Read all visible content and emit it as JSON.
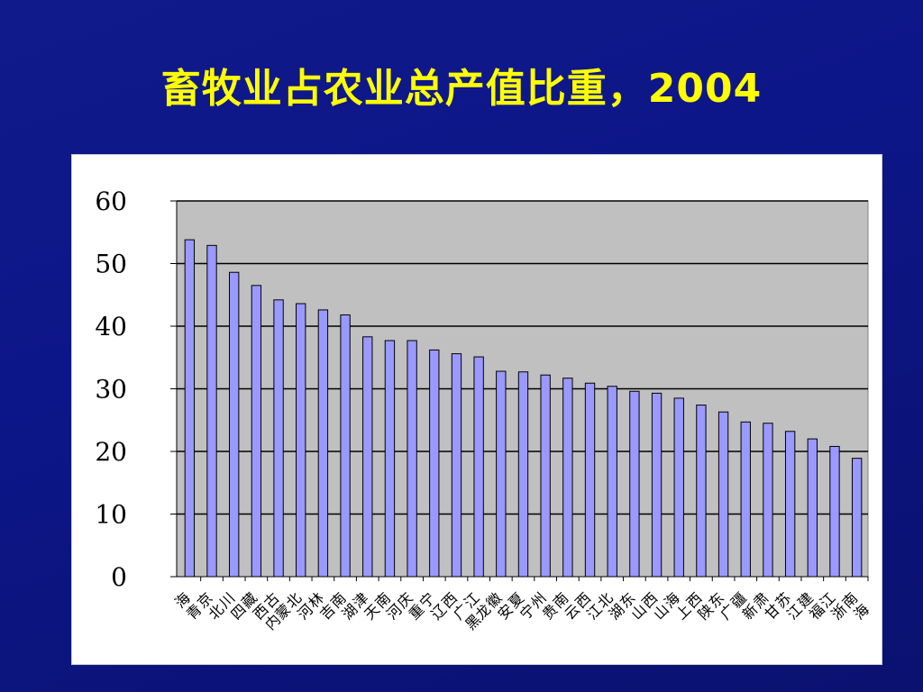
{
  "slide": {
    "title": "畜牧业占农业总产值比重，2004",
    "background_color": "#0d1688",
    "title_color": "#ffff00"
  },
  "chart_data": {
    "type": "bar",
    "title": "",
    "xlabel": "",
    "ylabel": "",
    "ylim": [
      0,
      60
    ],
    "yticks": [
      0,
      10,
      20,
      30,
      40,
      50,
      60
    ],
    "grid": true,
    "plot_background": "#c0c0c0",
    "bar_color": "#9999ff",
    "categories": [
      "青海",
      "北京",
      "四川",
      "西藏",
      "内蒙古",
      "河北",
      "吉林",
      "湖南",
      "天津",
      "河南",
      "重庆",
      "辽宁",
      "广西",
      "黑龙江",
      "安徽",
      "宁夏",
      "贵州",
      "云南",
      "江西",
      "湖北",
      "山东",
      "山西",
      "上海",
      "陕西",
      "广东",
      "新疆",
      "甘肃",
      "江苏",
      "福建",
      "浙江",
      "海南"
    ],
    "category_lines": [
      [
        "青",
        "海"
      ],
      [
        "北",
        "京"
      ],
      [
        "四",
        "川"
      ],
      [
        "西",
        "藏"
      ],
      [
        "内蒙",
        "古"
      ],
      [
        "河",
        "北"
      ],
      [
        "吉",
        "林"
      ],
      [
        "湖",
        "南"
      ],
      [
        "天",
        "津"
      ],
      [
        "河",
        "南"
      ],
      [
        "重",
        "庆"
      ],
      [
        "辽",
        "宁"
      ],
      [
        "广",
        "西"
      ],
      [
        "黑龙",
        "江"
      ],
      [
        "安",
        "徽"
      ],
      [
        "宁",
        "夏"
      ],
      [
        "贵",
        "州"
      ],
      [
        "云",
        "南"
      ],
      [
        "江",
        "西"
      ],
      [
        "湖",
        "北"
      ],
      [
        "山",
        "东"
      ],
      [
        "山",
        "西"
      ],
      [
        "上",
        "海"
      ],
      [
        "陕",
        "西"
      ],
      [
        "广",
        "东"
      ],
      [
        "新",
        "疆"
      ],
      [
        "甘",
        "肃"
      ],
      [
        "江",
        "苏"
      ],
      [
        "福",
        "建"
      ],
      [
        "浙",
        "江"
      ],
      [
        "海",
        "南"
      ]
    ],
    "values": [
      53.8,
      52.9,
      48.6,
      46.5,
      44.2,
      43.6,
      42.6,
      41.8,
      38.3,
      37.7,
      37.7,
      36.2,
      35.6,
      35.1,
      32.8,
      32.7,
      32.2,
      31.7,
      30.9,
      30.4,
      29.6,
      29.3,
      28.5,
      27.4,
      26.3,
      24.7,
      24.5,
      23.2,
      22.0,
      20.8,
      18.9
    ]
  }
}
